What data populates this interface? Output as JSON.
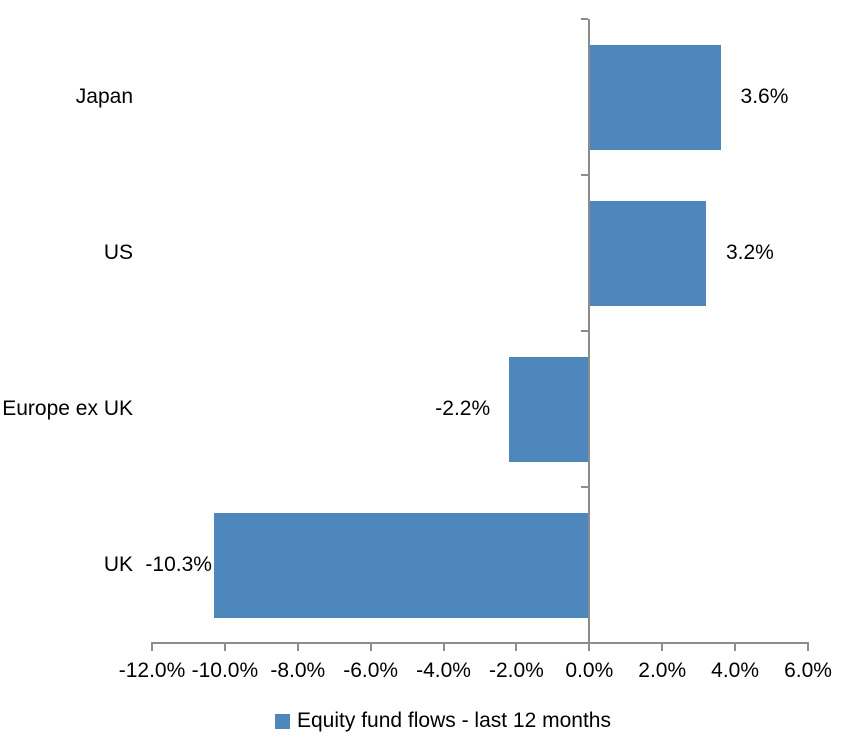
{
  "chart_data": {
    "type": "bar",
    "orientation": "horizontal",
    "title": "",
    "xlabel": "",
    "ylabel": "",
    "categories": [
      "Japan",
      "US",
      "Europe ex UK",
      "UK"
    ],
    "series": [
      {
        "name": "Equity fund flows - last 12 months",
        "values": [
          3.6,
          3.2,
          -2.2,
          -10.3
        ],
        "value_labels": [
          "3.6%",
          "3.2%",
          "-2.2%",
          "-10.3%"
        ]
      }
    ],
    "xlim": [
      -12,
      6
    ],
    "x_ticks": [
      -12,
      -10,
      -8,
      -6,
      -4,
      -2,
      0,
      2,
      4,
      6
    ],
    "x_tick_labels": [
      "-12.0%",
      "-10.0%",
      "-8.0%",
      "-6.0%",
      "-4.0%",
      "-2.0%",
      "0.0%",
      "2.0%",
      "4.0%",
      "6.0%"
    ],
    "grid": false,
    "legend_position": "bottom",
    "bar_color": "#4E87BC",
    "axis_color": "#8C8C8C",
    "text_color": "#000000",
    "value_label_gaps": [
      20,
      20,
      19,
      2
    ]
  },
  "legend": {
    "label": "Equity fund flows - last 12 months",
    "swatch_color": "#4E87BC"
  }
}
